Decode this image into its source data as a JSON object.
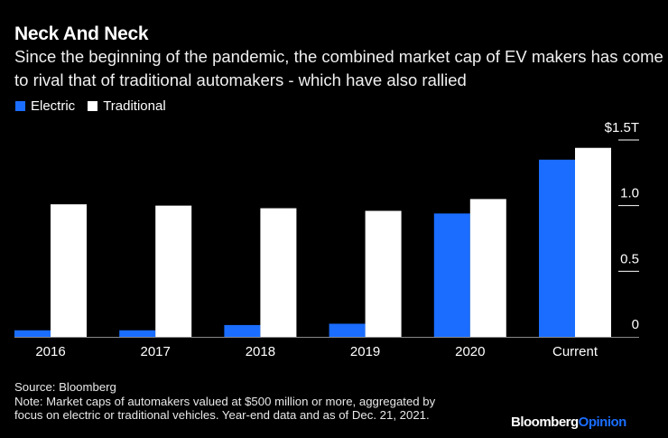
{
  "header": {
    "title": "Neck And Neck",
    "subtitle": "Since the beginning of the pandemic, the combined market cap of EV makers has come to rival that of traditional automakers - which have also rallied"
  },
  "legend": [
    {
      "label": "Electric",
      "color": "#1a6dff"
    },
    {
      "label": "Traditional",
      "color": "#ffffff"
    }
  ],
  "chart_data": {
    "type": "bar",
    "title": "Neck And Neck",
    "xlabel": "",
    "ylabel": "",
    "categories": [
      "2016",
      "2017",
      "2018",
      "2019",
      "2020",
      "Current"
    ],
    "series": [
      {
        "name": "Electric",
        "color": "#1a6dff",
        "values": [
          0.05,
          0.05,
          0.09,
          0.1,
          0.94,
          1.35
        ]
      },
      {
        "name": "Traditional",
        "color": "#ffffff",
        "values": [
          1.01,
          1.0,
          0.98,
          0.96,
          1.05,
          1.44
        ]
      }
    ],
    "ylim": [
      0,
      1.5
    ],
    "yticks": [
      {
        "value": 0,
        "label": "0"
      },
      {
        "value": 0.5,
        "label": "0.5"
      },
      {
        "value": 1.0,
        "label": "1.0"
      },
      {
        "value": 1.5,
        "label": "$1.5T"
      }
    ],
    "y_axis_side": "right",
    "grid": false,
    "legend_position": "top-left",
    "unit": "trillion USD market cap"
  },
  "footer": {
    "source": "Source: Bloomberg",
    "note_line1": "Note: Market caps of automakers valued at $500 million or more, aggregated by",
    "note_line2": "focus on electric or traditional vehicles. Year-end data and as of Dec. 21, 2021.",
    "brand_part1": "Bloomberg",
    "brand_part2": "Opinion"
  }
}
